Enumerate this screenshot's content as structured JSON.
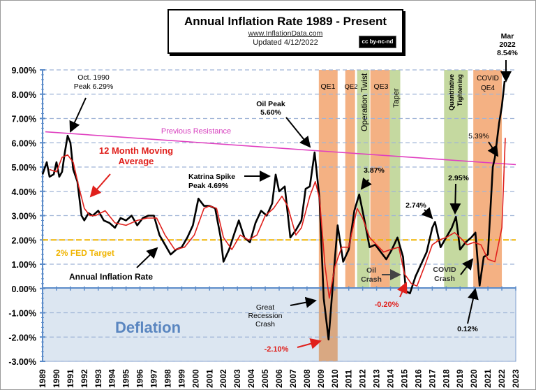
{
  "chart_data": {
    "type": "line",
    "title": "Annual  Inflation Rate 1989 - Present",
    "subtitle_url": "www.InflationData.com",
    "updated": "Updated   4/12/2022",
    "license_badge": "cc by-nc-nd",
    "xlabel": "",
    "ylabel": "",
    "xlim": [
      1989,
      2023
    ],
    "ylim": [
      -3.0,
      9.0
    ],
    "grid": true,
    "y_ticks": [
      "9.00%",
      "8.00%",
      "7.00%",
      "6.00%",
      "5.00%",
      "4.00%",
      "3.00%",
      "2.00%",
      "1.00%",
      "0.00%",
      "-1.00%",
      "-2.00%",
      "-3.00%"
    ],
    "y_tick_values": [
      9,
      8,
      7,
      6,
      5,
      4,
      3,
      2,
      1,
      0,
      -1,
      -2,
      -3
    ],
    "x_ticks": [
      "1989",
      "1990",
      "1991",
      "1992",
      "1993",
      "1994",
      "1995",
      "1996",
      "1997",
      "1998",
      "1999",
      "2000",
      "2001",
      "2002",
      "2003",
      "2004",
      "2005",
      "2006",
      "2007",
      "2008",
      "2009",
      "2010",
      "2011",
      "2012",
      "2013",
      "2014",
      "2015",
      "2016",
      "2017",
      "2018",
      "2019",
      "2020",
      "2021",
      "2022",
      "2023"
    ],
    "series": [
      {
        "name": "Annual Inflation Rate",
        "color": "#000000",
        "x": [
          1989.0,
          1989.3,
          1989.5,
          1989.8,
          1990.0,
          1990.2,
          1990.4,
          1990.6,
          1990.8,
          1991.0,
          1991.2,
          1991.5,
          1991.8,
          1992.0,
          1992.3,
          1992.6,
          1993.0,
          1993.4,
          1993.8,
          1994.2,
          1994.6,
          1995.0,
          1995.4,
          1995.8,
          1996.2,
          1996.6,
          1997.0,
          1997.4,
          1997.8,
          1998.2,
          1998.6,
          1999.0,
          1999.4,
          1999.8,
          2000.2,
          2000.6,
          2001.0,
          2001.4,
          2001.8,
          2002.0,
          2002.4,
          2002.8,
          2003.1,
          2003.5,
          2003.9,
          2004.3,
          2004.7,
          2005.1,
          2005.5,
          2005.75,
          2006.0,
          2006.4,
          2006.8,
          2007.2,
          2007.6,
          2007.9,
          2008.2,
          2008.55,
          2008.9,
          2009.2,
          2009.55,
          2009.9,
          2010.2,
          2010.6,
          2011.0,
          2011.4,
          2011.75,
          2012.1,
          2012.5,
          2012.9,
          2013.3,
          2013.7,
          2014.1,
          2014.5,
          2014.9,
          2015.1,
          2015.4,
          2015.8,
          2016.2,
          2016.6,
          2017.0,
          2017.2,
          2017.6,
          2018.0,
          2018.4,
          2018.7,
          2019.0,
          2019.4,
          2019.8,
          2020.1,
          2020.4,
          2020.7,
          2021.0,
          2021.35,
          2021.5,
          2021.8,
          2022.0,
          2022.2
        ],
        "values": [
          4.7,
          5.2,
          4.6,
          4.7,
          5.2,
          4.6,
          4.8,
          5.6,
          6.29,
          6.0,
          4.9,
          4.4,
          3.0,
          2.8,
          3.1,
          3.0,
          3.2,
          2.8,
          2.7,
          2.5,
          2.9,
          2.8,
          3.0,
          2.6,
          2.9,
          3.0,
          3.0,
          2.2,
          1.8,
          1.4,
          1.6,
          1.7,
          2.1,
          2.6,
          3.7,
          3.4,
          3.4,
          3.3,
          2.1,
          1.1,
          1.6,
          2.3,
          2.8,
          2.1,
          1.9,
          2.7,
          3.2,
          3.0,
          3.5,
          4.69,
          4.0,
          4.2,
          2.1,
          2.4,
          2.8,
          4.1,
          4.2,
          5.6,
          3.7,
          -0.4,
          -2.1,
          0.5,
          2.6,
          1.1,
          1.6,
          3.2,
          3.87,
          2.9,
          1.7,
          1.8,
          1.5,
          1.2,
          1.6,
          2.1,
          1.3,
          -0.1,
          -0.2,
          0.5,
          1.0,
          1.5,
          2.5,
          2.74,
          1.7,
          2.1,
          2.5,
          2.95,
          1.6,
          1.9,
          2.1,
          2.3,
          0.12,
          1.3,
          1.4,
          5.0,
          5.39,
          6.8,
          7.5,
          8.54
        ]
      },
      {
        "name": "12 Month Moving Average",
        "color": "#e0201c",
        "x": [
          1989.5,
          1990.0,
          1990.4,
          1990.8,
          1991.2,
          1991.6,
          1992.0,
          1992.4,
          1992.8,
          1993.5,
          1994.2,
          1995.0,
          1995.8,
          1996.5,
          1997.2,
          1997.8,
          1998.5,
          1999.2,
          1999.9,
          2000.6,
          2001.0,
          2001.5,
          2002.0,
          2002.6,
          2003.2,
          2003.8,
          2004.4,
          2005.0,
          2005.6,
          2006.2,
          2006.6,
          2007.2,
          2007.6,
          2008.2,
          2008.6,
          2008.9,
          2009.3,
          2009.6,
          2010.0,
          2010.5,
          2011.0,
          2011.6,
          2012.0,
          2012.5,
          2013.0,
          2013.5,
          2014.0,
          2014.6,
          2015.0,
          2015.5,
          2015.9,
          2016.5,
          2017.0,
          2017.5,
          2018.0,
          2018.6,
          2019.0,
          2019.5,
          2020.0,
          2020.5,
          2021.0,
          2021.5,
          2022.0,
          2022.25
        ],
        "values": [
          4.9,
          4.8,
          5.4,
          5.5,
          5.2,
          4.2,
          3.3,
          3.0,
          3.0,
          3.2,
          2.7,
          2.6,
          2.8,
          2.9,
          2.9,
          2.2,
          1.6,
          1.7,
          2.2,
          3.3,
          3.4,
          3.3,
          2.1,
          1.6,
          2.2,
          2.0,
          2.2,
          3.0,
          3.3,
          3.8,
          3.4,
          2.2,
          2.5,
          3.8,
          4.4,
          3.7,
          0.9,
          -0.4,
          0.9,
          1.7,
          1.7,
          3.3,
          2.9,
          2.1,
          1.8,
          1.5,
          1.6,
          1.7,
          0.6,
          0.2,
          0.1,
          1.0,
          1.8,
          2.0,
          2.1,
          2.3,
          2.1,
          1.8,
          1.9,
          1.8,
          1.2,
          1.1,
          2.5,
          6.2
        ]
      },
      {
        "name": "Previous Resistance",
        "color": "#e040c0",
        "x": [
          1989.2,
          2023
        ],
        "values": [
          6.45,
          5.1
        ]
      },
      {
        "name": "2% FED Target",
        "color": "#f0b400",
        "x": [
          1989,
          2023
        ],
        "values": [
          2.0,
          2.0
        ]
      }
    ],
    "bands": [
      {
        "label": "QE1",
        "start": 2008.85,
        "end": 2010.2,
        "color": "#f4b183",
        "deep": true
      },
      {
        "label": "QE2",
        "start": 2010.75,
        "end": 2011.45,
        "color": "#f4b183"
      },
      {
        "label": "Operation Twist",
        "start": 2011.6,
        "end": 2012.5,
        "color": "#c5d9a0",
        "vertical": true
      },
      {
        "label": "QE3",
        "start": 2012.55,
        "end": 2013.95,
        "color": "#f4b183"
      },
      {
        "label": "Taper",
        "start": 2013.95,
        "end": 2014.7,
        "color": "#c5d9a0",
        "vertical": true
      },
      {
        "label": "Quantitative Tightening",
        "start": 2017.85,
        "end": 2019.55,
        "color": "#c5d9a0",
        "vertical": true
      },
      {
        "label": "COVID QE4",
        "start": 2019.95,
        "end": 2022.0,
        "color": "#f4b183"
      }
    ],
    "deflation_label": "Deflation",
    "annotations": [
      {
        "text": "Oct. 1990",
        "text2": "Peak 6.29%"
      },
      {
        "text": "Previous Resistance"
      },
      {
        "text": "12 Month Moving",
        "text2": "Average"
      },
      {
        "text": "Katrina Spike",
        "text2": "Peak 4.69%"
      },
      {
        "text": "Oil Peak",
        "text2": "5.60%"
      },
      {
        "text": "2% FED Target"
      },
      {
        "text": "Annual Inflation Rate"
      },
      {
        "text": "Great",
        "text2": "Recession",
        "text3": "Crash"
      },
      {
        "text": "-2.10%"
      },
      {
        "text": "3.87%"
      },
      {
        "text": "Oil",
        "text2": "Crash"
      },
      {
        "text": "-0.20%"
      },
      {
        "text": "2.74%"
      },
      {
        "text": "2.95%"
      },
      {
        "text": "COVID",
        "text2": "Crash"
      },
      {
        "text": "0.12%"
      },
      {
        "text": "5.39%"
      },
      {
        "text": "Mar",
        "text2": "2022",
        "text3": "8.54%"
      }
    ]
  }
}
